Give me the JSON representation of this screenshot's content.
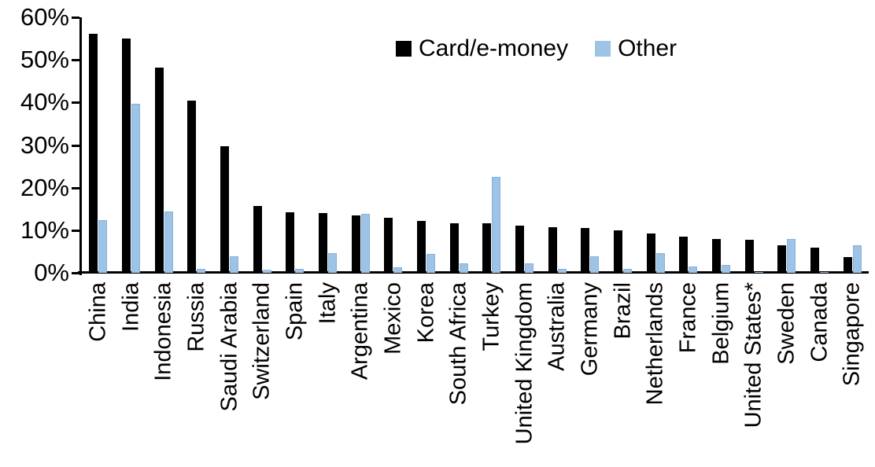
{
  "figure": {
    "background": "#ffffff",
    "accent_black": "#000000",
    "accent_blue": "#9dc3e6"
  },
  "chart_data": {
    "type": "bar",
    "title": "",
    "xlabel": "",
    "ylabel": "",
    "ylim": [
      0,
      60
    ],
    "ytick_interval": 10,
    "ytick_labels": [
      "0%",
      "10%",
      "20%",
      "30%",
      "40%",
      "50%",
      "60%"
    ],
    "grid": false,
    "legend_position": "top-center",
    "categories": [
      "China",
      "India",
      "Indonesia",
      "Russia",
      "Saudi Arabia",
      "Switzerland",
      "Spain",
      "Italy",
      "Argentina",
      "Mexico",
      "Korea",
      "South Africa",
      "Turkey",
      "United Kingdom",
      "Australia",
      "Germany",
      "Brazil",
      "Netherlands",
      "France",
      "Belgium",
      "United States*",
      "Sweden",
      "Canada",
      "Singapore"
    ],
    "series": [
      {
        "name": "Card/e-money",
        "color": "#000000",
        "values": [
          56.2,
          55.0,
          48.2,
          40.5,
          29.8,
          15.6,
          14.2,
          14.1,
          13.4,
          12.9,
          12.2,
          11.7,
          11.6,
          11.0,
          10.7,
          10.5,
          9.9,
          9.2,
          8.5,
          8.0,
          7.7,
          6.4,
          5.9,
          3.7
        ]
      },
      {
        "name": "Other",
        "color": "#9dc3e6",
        "values": [
          12.3,
          39.7,
          14.4,
          0.9,
          3.9,
          0.7,
          1.0,
          4.6,
          13.8,
          1.2,
          4.5,
          2.3,
          22.5,
          2.3,
          1.0,
          3.9,
          1.0,
          4.7,
          1.4,
          1.9,
          0.2,
          7.9,
          0.1,
          6.5
        ]
      }
    ]
  }
}
